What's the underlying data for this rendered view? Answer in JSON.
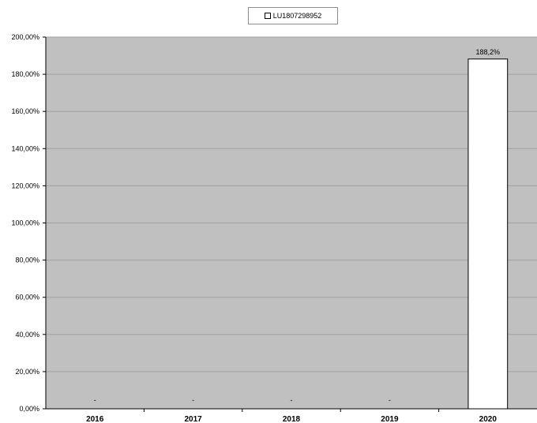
{
  "chart_data": {
    "type": "bar",
    "categories": [
      "2016",
      "2017",
      "2018",
      "2019",
      "2020"
    ],
    "series": [
      {
        "name": "LU1807298952",
        "values": [
          null,
          null,
          null,
          null,
          188.2
        ],
        "labels": [
          "-",
          "-",
          "-",
          "-",
          "188,2%"
        ]
      }
    ],
    "yticks": [
      "0,00%",
      "20,00%",
      "40,00%",
      "60,00%",
      "80,00%",
      "100,00%",
      "120,00%",
      "140,00%",
      "160,00%",
      "180,00%",
      "200,00%"
    ],
    "ylim": [
      0,
      200
    ],
    "grid": true,
    "legend": "top-center",
    "colors": {
      "plot_background": "#c0c0c0",
      "bar_fill": "#ffffff",
      "bar_stroke": "#000000",
      "gridline": "#a0a0a0"
    }
  }
}
